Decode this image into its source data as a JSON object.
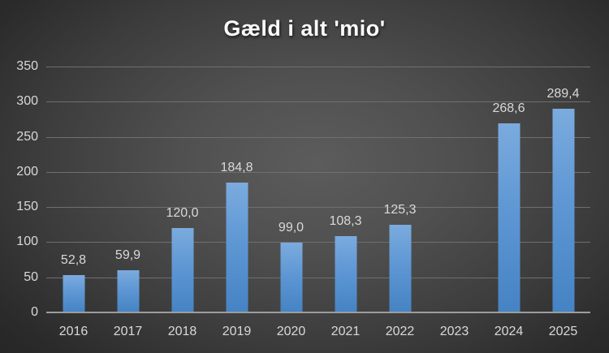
{
  "chart": {
    "title": "Gæld i alt 'mio'"
  },
  "chart_data": {
    "type": "bar",
    "title": "Gæld i alt 'mio'",
    "categories": [
      "2016",
      "2017",
      "2018",
      "2019",
      "2020",
      "2021",
      "2022",
      "2023",
      "2024",
      "2025"
    ],
    "values": [
      52.8,
      59.9,
      120.0,
      184.8,
      99.0,
      108.3,
      125.3,
      null,
      268.6,
      289.4
    ],
    "value_labels": [
      "52,8",
      "59,9",
      "120,0",
      "184,8",
      "99,0",
      "108,3",
      "125,3",
      null,
      "268,6",
      "289,4"
    ],
    "xlabel": "",
    "ylabel": "",
    "ylim": [
      0,
      350
    ],
    "yticks": [
      0,
      50,
      100,
      150,
      200,
      250,
      300,
      350
    ],
    "grid": true,
    "legend": "none"
  },
  "colors": {
    "bar_top": "#7babde",
    "bar_bottom": "#4583c4",
    "background_center": "#5c5c5c",
    "background_edge": "#242424",
    "gridline": "#6f6f6f",
    "axis_line": "#9d9d9d",
    "tick_label": "#d9d9d9",
    "data_label": "#d9d9d9",
    "title": "#fbfbfb"
  }
}
